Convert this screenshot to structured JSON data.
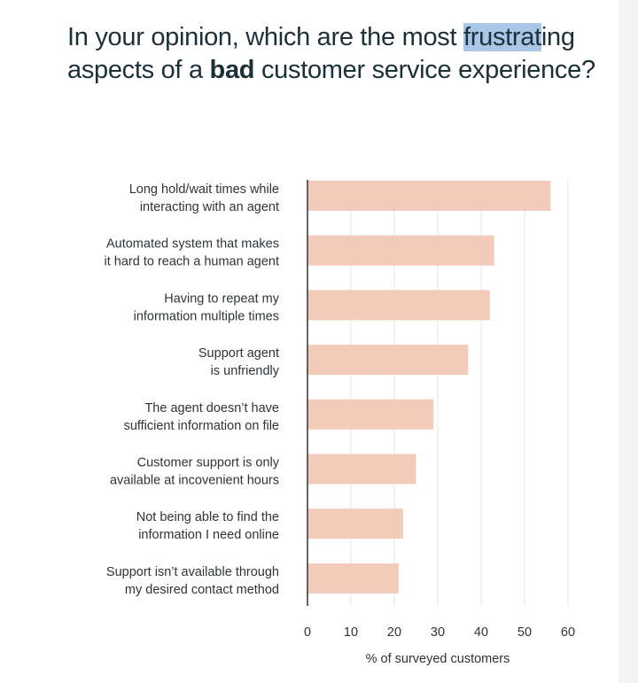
{
  "title": {
    "part_before": "In your opinion, which are the most ",
    "highlighted": "frustrat",
    "part_mid": "ing aspects of a ",
    "bold": "bad",
    "part_after": " customer service experience?"
  },
  "colors": {
    "bar": "#f2cbbb",
    "grid": "#e6e6e6",
    "axis": "#333333",
    "title_text": "#1b3038",
    "highlight": "#a9c6e6"
  },
  "chart_data": {
    "type": "bar",
    "orientation": "horizontal",
    "categories": [
      [
        "Long hold/wait times while",
        "interacting with an agent"
      ],
      [
        "Automated system that makes",
        "it hard to reach a human agent"
      ],
      [
        "Having to repeat my",
        "information multiple times"
      ],
      [
        "Support agent",
        "is unfriendly"
      ],
      [
        "The agent doesn’t have",
        "sufficient information on file"
      ],
      [
        "Customer support is only",
        "available at incovenient hours"
      ],
      [
        "Not being able to find the",
        "information I need online"
      ],
      [
        "Support isn’t available through",
        "my desired contact method"
      ]
    ],
    "values": [
      56,
      43,
      42,
      37,
      29,
      25,
      22,
      21
    ],
    "xlabel": "% of surveyed customers",
    "ylabel": "",
    "xlim": [
      0,
      60
    ],
    "xticks": [
      0,
      10,
      20,
      30,
      40,
      50,
      60
    ],
    "grid": "vertical"
  }
}
